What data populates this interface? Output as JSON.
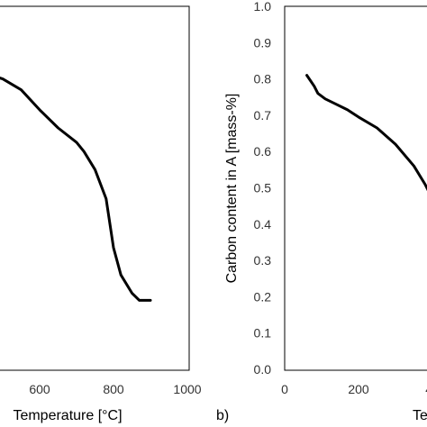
{
  "chart_data": [
    {
      "panel": "a",
      "type": "line",
      "xlabel": "Temperature [°C]",
      "ylabel": "",
      "xlim": [
        0,
        1000
      ],
      "xticks": [
        "600",
        "800",
        "1000"
      ],
      "grid": false,
      "series": [
        {
          "x": [
            470,
            500,
            550,
            600,
            650,
            700,
            720,
            750,
            780,
            800,
            820,
            850,
            870,
            900
          ],
          "y": [
            0.81,
            0.8,
            0.77,
            0.715,
            0.665,
            0.625,
            0.6,
            0.55,
            0.47,
            0.335,
            0.26,
            0.21,
            0.19,
            0.19
          ]
        }
      ]
    },
    {
      "panel": "b",
      "type": "line",
      "xlabel": "Te",
      "ylabel": "Carbon content in A [mass-%]",
      "xlim": [
        0,
        400
      ],
      "ylim": [
        0,
        1.0
      ],
      "xticks": [
        "0",
        "200",
        "40"
      ],
      "yticks": [
        "0.0",
        "0.1",
        "0.2",
        "0.3",
        "0.4",
        "0.5",
        "0.6",
        "0.7",
        "0.8",
        "0.9",
        "1.0"
      ],
      "grid": false,
      "series": [
        {
          "x": [
            60,
            70,
            80,
            90,
            110,
            140,
            170,
            200,
            250,
            300,
            350,
            380,
            400,
            420
          ],
          "y": [
            0.81,
            0.795,
            0.78,
            0.76,
            0.745,
            0.73,
            0.715,
            0.695,
            0.665,
            0.62,
            0.56,
            0.51,
            0.47,
            0.43
          ]
        }
      ]
    }
  ],
  "panel_tag_b": "b)"
}
